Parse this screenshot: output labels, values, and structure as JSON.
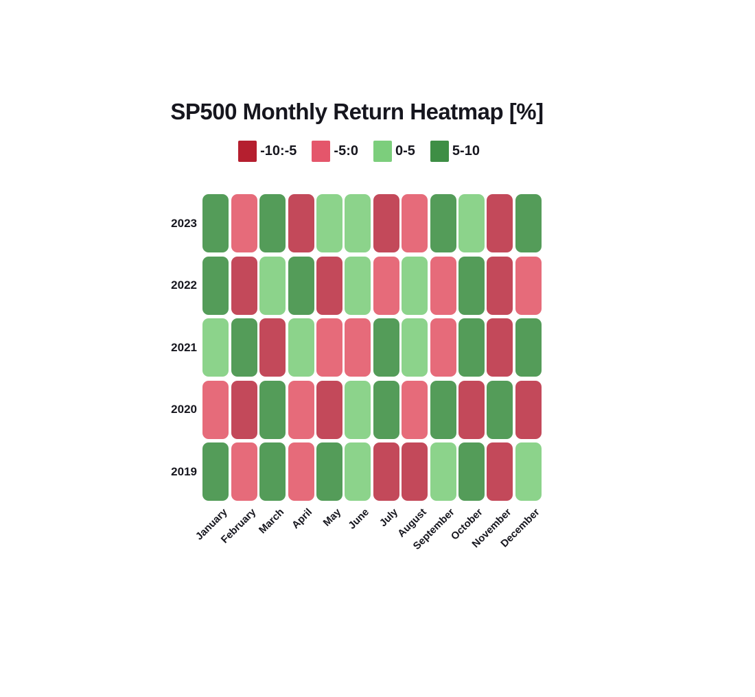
{
  "title": "SP500 Monthly Return Heatmap [%]",
  "legend": {
    "items": [
      {
        "label": "-10:-5",
        "color": "#B51F2F"
      },
      {
        "label": "-5:0",
        "color": "#E4566B"
      },
      {
        "label": "0-5",
        "color": "#7CCE7C"
      },
      {
        "label": "5-10",
        "color": "#3E8E45"
      }
    ]
  },
  "chart_data": {
    "type": "heatmap",
    "title": "SP500 Monthly Return Heatmap [%]",
    "x_categories": [
      "January",
      "February",
      "March",
      "April",
      "May",
      "June",
      "July",
      "August",
      "September",
      "October",
      "November",
      "December"
    ],
    "y_categories": [
      "2023",
      "2022",
      "2021",
      "2020",
      "2019"
    ],
    "value_bins": [
      "-10:-5",
      "-5:0",
      "0-5",
      "5-10"
    ],
    "cell_colors": {
      "-10:-5": "#C3495A",
      "-5:0": "#E66B7A",
      "0-5": "#8CD38B",
      "5-10": "#549C59"
    },
    "rows": [
      {
        "year": "2023",
        "bins": [
          "5-10",
          "-5:0",
          "5-10",
          "-10:-5",
          "0-5",
          "0-5",
          "-10:-5",
          "-5:0",
          "5-10",
          "0-5",
          "-10:-5",
          "5-10"
        ]
      },
      {
        "year": "2022",
        "bins": [
          "5-10",
          "-10:-5",
          "0-5",
          "5-10",
          "-10:-5",
          "0-5",
          "-5:0",
          "0-5",
          "-5:0",
          "5-10",
          "-10:-5",
          "-5:0"
        ]
      },
      {
        "year": "2021",
        "bins": [
          "0-5",
          "5-10",
          "-10:-5",
          "0-5",
          "-5:0",
          "-5:0",
          "5-10",
          "0-5",
          "-5:0",
          "5-10",
          "-10:-5",
          "5-10"
        ]
      },
      {
        "year": "2020",
        "bins": [
          "-5:0",
          "-10:-5",
          "5-10",
          "-5:0",
          "-10:-5",
          "0-5",
          "5-10",
          "-5:0",
          "5-10",
          "-10:-5",
          "5-10",
          "-10:-5"
        ]
      },
      {
        "year": "2019",
        "bins": [
          "5-10",
          "-5:0",
          "5-10",
          "-5:0",
          "5-10",
          "0-5",
          "-10:-5",
          "-10:-5",
          "0-5",
          "5-10",
          "-10:-5",
          "0-5"
        ]
      }
    ],
    "layout": {
      "legend_position": "top-center",
      "x_tick_rotation": 45,
      "grid": false,
      "background": "#FFFFFF"
    }
  }
}
